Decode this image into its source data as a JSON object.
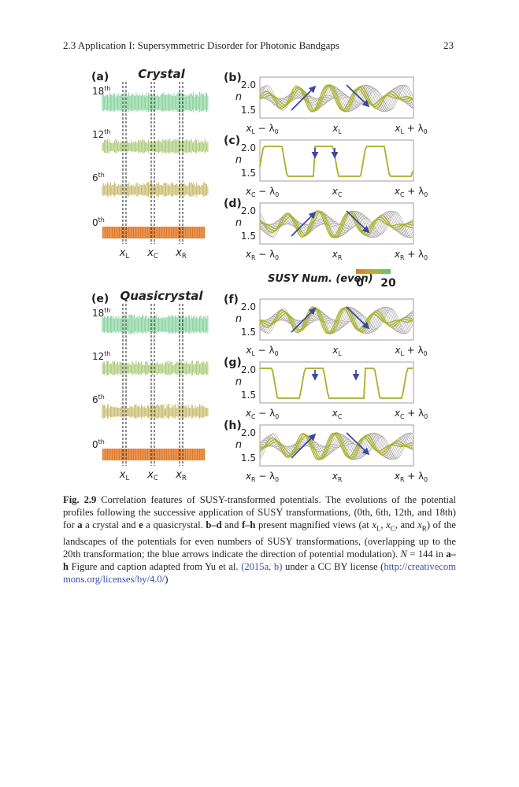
{
  "header": {
    "section": "2.3 Application I: Supersymmetric Disorder for Photonic Bandgaps",
    "page": "23"
  },
  "figure": {
    "overview": [
      {
        "label": "(a)",
        "title": "Crystal",
        "orders": [
          {
            "num": "18",
            "sup": "th"
          },
          {
            "num": "12",
            "sup": "th"
          },
          {
            "num": "6",
            "sup": "th"
          },
          {
            "num": "0",
            "sup": "th"
          }
        ],
        "positions": [
          [
            {
              "t": "x"
            },
            {
              "t": "L",
              "sub": true
            }
          ],
          [
            {
              "t": "x"
            },
            {
              "t": "C",
              "sub": true
            }
          ],
          [
            {
              "t": "x"
            },
            {
              "t": "R",
              "sub": true
            }
          ]
        ]
      },
      {
        "label": "(e)",
        "title": "Quasicrystal",
        "orders": [
          {
            "num": "18",
            "sup": "th"
          },
          {
            "num": "12",
            "sup": "th"
          },
          {
            "num": "6",
            "sup": "th"
          },
          {
            "num": "0",
            "sup": "th"
          }
        ],
        "positions": [
          [
            {
              "t": "x"
            },
            {
              "t": "L",
              "sub": true
            }
          ],
          [
            {
              "t": "x"
            },
            {
              "t": "C",
              "sub": true
            }
          ],
          [
            {
              "t": "x"
            },
            {
              "t": "R",
              "sub": true
            }
          ]
        ]
      }
    ],
    "magnified": [
      {
        "label": "(b)",
        "ylabel": "n",
        "yticks": [
          "2.0",
          "1.5"
        ],
        "xticks": [
          [
            {
              "t": "x"
            },
            {
              "t": "L",
              "sub": true
            },
            {
              "t": " − λ"
            },
            {
              "t": "0",
              "sub": true
            }
          ],
          [
            {
              "t": "x"
            },
            {
              "t": "L",
              "sub": true
            }
          ],
          [
            {
              "t": "x"
            },
            {
              "t": "L",
              "sub": true
            },
            {
              "t": " + λ"
            },
            {
              "t": "0",
              "sub": true
            }
          ]
        ]
      },
      {
        "label": "(c)",
        "ylabel": "n",
        "yticks": [
          "2.0",
          "1.5"
        ],
        "xticks": [
          [
            {
              "t": "x"
            },
            {
              "t": "C",
              "sub": true
            },
            {
              "t": " − λ"
            },
            {
              "t": "0",
              "sub": true
            }
          ],
          [
            {
              "t": "x"
            },
            {
              "t": "C",
              "sub": true
            }
          ],
          [
            {
              "t": "x"
            },
            {
              "t": "C",
              "sub": true
            },
            {
              "t": " + λ"
            },
            {
              "t": "0",
              "sub": true
            }
          ]
        ]
      },
      {
        "label": "(d)",
        "ylabel": "n",
        "yticks": [
          "2.0",
          "1.5"
        ],
        "xticks": [
          [
            {
              "t": "x"
            },
            {
              "t": "R",
              "sub": true
            },
            {
              "t": " − λ"
            },
            {
              "t": "0",
              "sub": true
            }
          ],
          [
            {
              "t": "x"
            },
            {
              "t": "R",
              "sub": true
            }
          ],
          [
            {
              "t": "x"
            },
            {
              "t": "R",
              "sub": true
            },
            {
              "t": " + λ"
            },
            {
              "t": "0",
              "sub": true
            }
          ]
        ]
      },
      {
        "label": "(f)",
        "ylabel": "n",
        "yticks": [
          "2.0",
          "1.5"
        ],
        "xticks": [
          [
            {
              "t": "x"
            },
            {
              "t": "L",
              "sub": true
            },
            {
              "t": " − λ"
            },
            {
              "t": "0",
              "sub": true
            }
          ],
          [
            {
              "t": "x"
            },
            {
              "t": "L",
              "sub": true
            }
          ],
          [
            {
              "t": "x"
            },
            {
              "t": "L",
              "sub": true
            },
            {
              "t": " + λ"
            },
            {
              "t": "0",
              "sub": true
            }
          ]
        ]
      },
      {
        "label": "(g)",
        "ylabel": "n",
        "yticks": [
          "2.0",
          "1.5"
        ],
        "xticks": [
          [
            {
              "t": "x"
            },
            {
              "t": "C",
              "sub": true
            },
            {
              "t": " − λ"
            },
            {
              "t": "0",
              "sub": true
            }
          ],
          [
            {
              "t": "x"
            },
            {
              "t": "C",
              "sub": true
            }
          ],
          [
            {
              "t": "x"
            },
            {
              "t": "C",
              "sub": true
            },
            {
              "t": " + λ"
            },
            {
              "t": "0",
              "sub": true
            }
          ]
        ]
      },
      {
        "label": "(h)",
        "ylabel": "n",
        "yticks": [
          "2.0",
          "1.5"
        ],
        "xticks": [
          [
            {
              "t": "x"
            },
            {
              "t": "R",
              "sub": true
            },
            {
              "t": " − λ"
            },
            {
              "t": "0",
              "sub": true
            }
          ],
          [
            {
              "t": "x"
            },
            {
              "t": "R",
              "sub": true
            }
          ],
          [
            {
              "t": "x"
            },
            {
              "t": "R",
              "sub": true
            },
            {
              "t": " + λ"
            },
            {
              "t": "0",
              "sub": true
            }
          ]
        ]
      }
    ],
    "colorbar": {
      "title": "SUSY Num. (even)",
      "min": "0",
      "max": "20"
    }
  },
  "caption": [
    {
      "t": "Fig. 2.9",
      "b": true
    },
    {
      "t": "  Correlation features of SUSY-transformed potentials. The evolutions of the potential profiles following the successive application of SUSY transformations, (0th, 6th, 12th, and 18th) for "
    },
    {
      "t": "a",
      "b": true
    },
    {
      "t": " a crystal and "
    },
    {
      "t": "e",
      "b": true
    },
    {
      "t": " a quasicrystal. "
    },
    {
      "t": "b–d",
      "b": true
    },
    {
      "t": " and "
    },
    {
      "t": "f–h",
      "b": true
    },
    {
      "t": " present magnified views (at "
    },
    {
      "t": "x",
      "i": true
    },
    {
      "t": "L",
      "sub": true
    },
    {
      "t": ", "
    },
    {
      "t": "x",
      "i": true
    },
    {
      "t": "C",
      "sub": true
    },
    {
      "t": ", and "
    },
    {
      "t": "x",
      "i": true
    },
    {
      "t": "R",
      "sub": true
    },
    {
      "t": ") of the landscapes of the potentials for even numbers of SUSY transformations, (overlapping up to the 20th transformation; the blue arrows indicate the direction of potential modulation). "
    },
    {
      "t": "N",
      "i": true
    },
    {
      "t": " = 144 in "
    },
    {
      "t": "a–h",
      "b": true
    },
    {
      "t": " Figure and caption adapted from Yu et al. "
    },
    {
      "t": "(2015a, b)",
      "link": true
    },
    {
      "t": " under a CC BY license ("
    },
    {
      "t": "http://creativecommons.org/licenses/by/4.0/",
      "link": true
    },
    {
      "t": ")"
    }
  ]
}
